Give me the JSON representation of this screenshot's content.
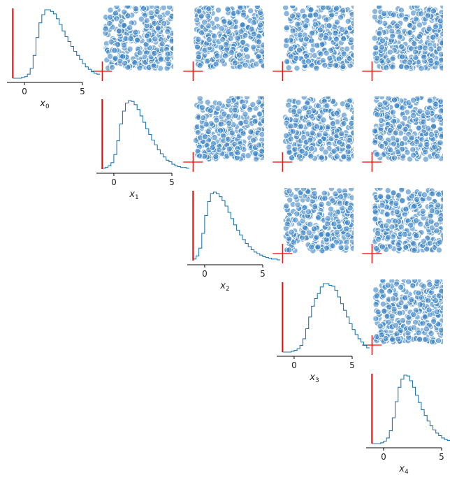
{
  "chart_data": {
    "type": "pairplot",
    "variables": [
      "x0",
      "x1",
      "x2",
      "x3",
      "x4"
    ],
    "axis_labels": [
      {
        "base": "x",
        "sub": "0"
      },
      {
        "base": "x",
        "sub": "1"
      },
      {
        "base": "x",
        "sub": "2"
      },
      {
        "base": "x",
        "sub": "3"
      },
      {
        "base": "x",
        "sub": "4"
      }
    ],
    "xlim": [
      -1.5,
      5
    ],
    "x_ticks": [
      0,
      5
    ],
    "x_tick_labels": [
      "0",
      "5"
    ],
    "reference_point": [
      -1,
      -1,
      -1,
      -1,
      -1
    ],
    "colors": {
      "histogram": "#1f77b4",
      "scatter": "#3d85c6",
      "reference": "#ff0000",
      "axis": "#000000"
    },
    "histograms": [
      {
        "variable": "x0",
        "bin_start": -1.0,
        "bin_width": 0.25,
        "counts": [
          0,
          0,
          0,
          1,
          2,
          5,
          12,
          28,
          50,
          68,
          78,
          84,
          84,
          82,
          79,
          73,
          66,
          58,
          51,
          45,
          39,
          33,
          28,
          23,
          18,
          14,
          11,
          8,
          6,
          5
        ]
      },
      {
        "variable": "x1",
        "bin_start": -1.0,
        "bin_width": 0.25,
        "counts": [
          1,
          2,
          4,
          8,
          18,
          35,
          56,
          72,
          82,
          85,
          84,
          80,
          74,
          66,
          58,
          50,
          43,
          36,
          30,
          24,
          19,
          15,
          11,
          9,
          6,
          4,
          3,
          2,
          2,
          1
        ]
      },
      {
        "variable": "x2",
        "bin_start": -1.0,
        "bin_width": 0.25,
        "counts": [
          2,
          6,
          16,
          35,
          58,
          76,
          86,
          88,
          86,
          82,
          77,
          70,
          62,
          54,
          46,
          39,
          33,
          27,
          22,
          18,
          14,
          11,
          9,
          7,
          5,
          4,
          3,
          2,
          2,
          1
        ]
      },
      {
        "variable": "x3",
        "bin_start": -1.0,
        "bin_width": 0.25,
        "counts": [
          0,
          0,
          0,
          1,
          2,
          4,
          8,
          16,
          28,
          42,
          55,
          64,
          70,
          78,
          82,
          82,
          80,
          79,
          74,
          66,
          58,
          50,
          42,
          34,
          27,
          21,
          16,
          12,
          8,
          5
        ]
      },
      {
        "variable": "x4",
        "bin_start": -1.0,
        "bin_width": 0.25,
        "counts": [
          0,
          0,
          0,
          1,
          3,
          7,
          16,
          32,
          52,
          70,
          80,
          85,
          84,
          78,
          70,
          60,
          51,
          42,
          35,
          28,
          22,
          17,
          13,
          10,
          7,
          5,
          4,
          3,
          2,
          2
        ]
      }
    ],
    "scatter_pairs": [
      {
        "x": "x1",
        "y": "x0"
      },
      {
        "x": "x2",
        "y": "x0"
      },
      {
        "x": "x3",
        "y": "x0"
      },
      {
        "x": "x4",
        "y": "x0"
      },
      {
        "x": "x2",
        "y": "x1"
      },
      {
        "x": "x3",
        "y": "x1"
      },
      {
        "x": "x4",
        "y": "x1"
      },
      {
        "x": "x3",
        "y": "x2"
      },
      {
        "x": "x4",
        "y": "x2"
      },
      {
        "x": "x4",
        "y": "x3"
      }
    ],
    "scatter_distribution": {
      "mode": [
        1.2,
        1.2
      ],
      "spread": [
        1.3,
        1.3
      ],
      "points_per_panel": 320
    },
    "grid": false,
    "legend": "none"
  }
}
